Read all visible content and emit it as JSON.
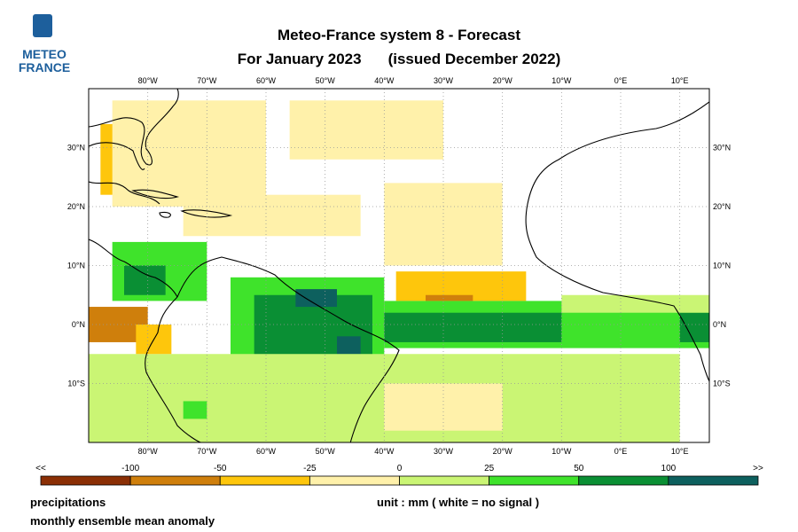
{
  "header": {
    "title_line1": "Meteo-France system 8  -  Forecast",
    "title_line2_a": "For January 2023",
    "title_line2_b": "(issued December 2022)"
  },
  "logo": {
    "line1": "METEO",
    "line2": "FRANCE",
    "icon": "meteo-france-logo-icon"
  },
  "map": {
    "lon_range": [
      -90,
      15
    ],
    "lat_range": [
      -20,
      40
    ],
    "lon_ticks": [
      {
        "value": -80,
        "label": "80°W"
      },
      {
        "value": -70,
        "label": "70°W"
      },
      {
        "value": -60,
        "label": "60°W"
      },
      {
        "value": -50,
        "label": "50°W"
      },
      {
        "value": -40,
        "label": "40°W"
      },
      {
        "value": -30,
        "label": "30°W"
      },
      {
        "value": -20,
        "label": "20°W"
      },
      {
        "value": -10,
        "label": "10°W"
      },
      {
        "value": 0,
        "label": "0°E"
      },
      {
        "value": 10,
        "label": "10°E"
      }
    ],
    "lat_ticks": [
      {
        "value": 30,
        "label": "30°N"
      },
      {
        "value": 20,
        "label": "20°N"
      },
      {
        "value": 10,
        "label": "10°N"
      },
      {
        "value": 0,
        "label": "0°N"
      },
      {
        "value": -10,
        "label": "10°S"
      }
    ],
    "grid": true
  },
  "legend": {
    "edge_left": "<<",
    "edge_right": ">>",
    "boundaries": [
      "-100",
      "-50",
      "-25",
      "0",
      "25",
      "50",
      "100"
    ],
    "colors": [
      "#8b2f05",
      "#cf7f0c",
      "#fec60c",
      "#fff1aa",
      "#caf574",
      "#3fe32b",
      "#0a8f34",
      "#0d605e"
    ]
  },
  "footer": {
    "variable": "precipitations",
    "description": "monthly ensemble mean anomaly",
    "unit": "unit : mm  ( white = no signal )"
  },
  "anomaly_regions": [
    {
      "name": "florida-gulf-dry",
      "cls": 2,
      "lon": [
        -88,
        -74
      ],
      "lat": [
        22,
        34
      ]
    },
    {
      "name": "gulf-weak-dry",
      "cls": 3,
      "lon": [
        -86,
        -60
      ],
      "lat": [
        20,
        38
      ]
    },
    {
      "name": "atlantic-north-weak-dry",
      "cls": 3,
      "lon": [
        -56,
        -30
      ],
      "lat": [
        28,
        38
      ]
    },
    {
      "name": "caribbean-weak-dry",
      "cls": 3,
      "lon": [
        -74,
        -44
      ],
      "lat": [
        15,
        22
      ]
    },
    {
      "name": "atlantic-central-weak-dry",
      "cls": 3,
      "lon": [
        -40,
        -20
      ],
      "lat": [
        10,
        24
      ]
    },
    {
      "name": "atlantic-itcz-dry",
      "cls": 2,
      "lon": [
        -38,
        -16
      ],
      "lat": [
        4,
        9
      ]
    },
    {
      "name": "atlantic-itcz-strong-dry",
      "cls": 1,
      "lon": [
        -33,
        -25
      ],
      "lat": [
        4,
        5
      ]
    },
    {
      "name": "pacific-strong-dry",
      "cls": 0,
      "lon": [
        -90,
        -81
      ],
      "lat": [
        -1,
        2
      ]
    },
    {
      "name": "pacific-dry",
      "cls": 1,
      "lon": [
        -90,
        -80
      ],
      "lat": [
        -3,
        3
      ]
    },
    {
      "name": "central-america-wet",
      "cls": 5,
      "lon": [
        -86,
        -70
      ],
      "lat": [
        4,
        14
      ]
    },
    {
      "name": "central-america-moderate-wet",
      "cls": 6,
      "lon": [
        -84,
        -77
      ],
      "lat": [
        5,
        10
      ]
    },
    {
      "name": "amazon-wet",
      "cls": 5,
      "lon": [
        -66,
        -40
      ],
      "lat": [
        -8,
        8
      ]
    },
    {
      "name": "amazon-moderate-wet",
      "cls": 6,
      "lon": [
        -62,
        -42
      ],
      "lat": [
        -6,
        5
      ]
    },
    {
      "name": "amazon-strong-wet",
      "cls": 7,
      "lon": [
        -55,
        -48
      ],
      "lat": [
        3,
        6
      ]
    },
    {
      "name": "amazon-delta-strong-wet",
      "cls": 7,
      "lon": [
        -48,
        -44
      ],
      "lat": [
        -5,
        -2
      ]
    },
    {
      "name": "equatorial-atlantic-wet",
      "cls": 5,
      "lon": [
        -40,
        15
      ],
      "lat": [
        -4,
        4
      ]
    },
    {
      "name": "equatorial-atlantic-moderate-wet",
      "cls": 6,
      "lon": [
        -40,
        -10
      ],
      "lat": [
        -3,
        2
      ]
    },
    {
      "name": "gulf-of-guinea-moderate-wet",
      "cls": 6,
      "lon": [
        10,
        15
      ],
      "lat": [
        -3,
        2
      ]
    },
    {
      "name": "southern-weak-wet",
      "cls": 4,
      "lon": [
        -90,
        10
      ],
      "lat": [
        -20,
        -5
      ]
    },
    {
      "name": "guinea-weak-wet",
      "cls": 4,
      "lon": [
        -10,
        15
      ],
      "lat": [
        2,
        5
      ]
    },
    {
      "name": "andes-wet",
      "cls": 5,
      "lon": [
        -74,
        -70
      ],
      "lat": [
        -16,
        -13
      ]
    },
    {
      "name": "brazil-south-weak-dry",
      "cls": 3,
      "lon": [
        -40,
        -20
      ],
      "lat": [
        -18,
        -10
      ]
    },
    {
      "name": "peru-dry",
      "cls": 2,
      "lon": [
        -82,
        -76
      ],
      "lat": [
        -5,
        0
      ]
    }
  ]
}
